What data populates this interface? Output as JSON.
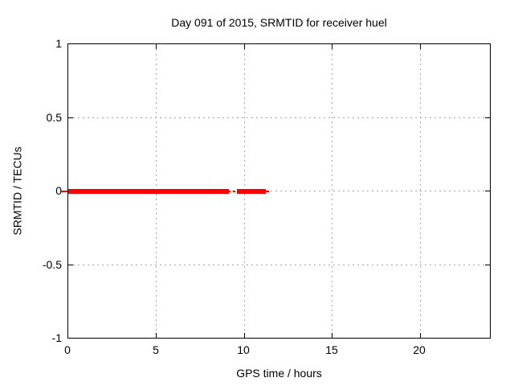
{
  "chart": {
    "title": "Day 091 of 2015, SRMTID for receiver huel",
    "xlabel": "GPS time / hours",
    "ylabel": "SRMTID / TECUs",
    "x_ticks": [
      "0",
      "5",
      "10",
      "15",
      "20"
    ],
    "y_ticks": [
      "1",
      "0.5",
      "0",
      "-0.5",
      "-1"
    ],
    "colors": {
      "series": "#ff0000",
      "grid": "#a6a6a6",
      "border": "#000000",
      "background": "#ffffff",
      "text": "#000000"
    }
  },
  "chart_data": {
    "type": "line",
    "title": "Day 091 of 2015, SRMTID for receiver huel",
    "xlabel": "GPS time / hours",
    "ylabel": "SRMTID / TECUs",
    "xlim": [
      0,
      24
    ],
    "ylim": [
      -1,
      1
    ],
    "x_tick_values": [
      0,
      5,
      10,
      15,
      20
    ],
    "y_tick_values": [
      -1,
      -0.5,
      0,
      0.5,
      1
    ],
    "grid": true,
    "grid_style": "dashed",
    "legend": "none",
    "series": [
      {
        "name": "SRMTID",
        "color": "#ff0000",
        "style": "thick line at constant value 0",
        "segments": [
          {
            "x_start": 0.0,
            "x_end": 9.2,
            "y": 0
          },
          {
            "x_start": 9.6,
            "x_end": 11.2,
            "y": 0
          }
        ]
      }
    ]
  }
}
